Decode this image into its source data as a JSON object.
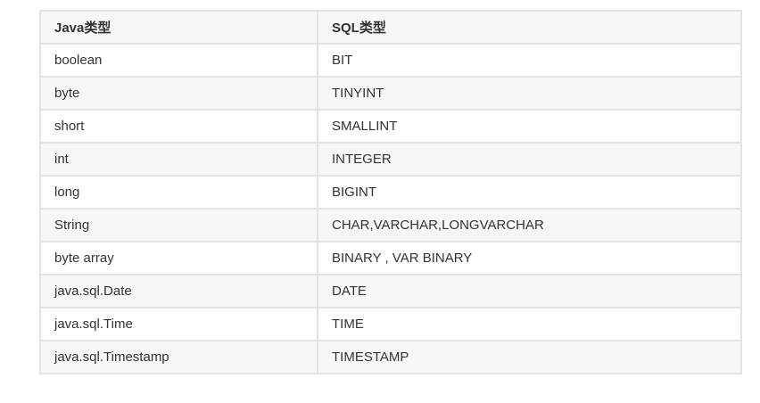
{
  "table": {
    "headers": [
      "Java类型",
      "SQL类型"
    ],
    "rows": [
      [
        "boolean",
        "BIT"
      ],
      [
        "byte",
        "TINYINT"
      ],
      [
        "short",
        "SMALLINT"
      ],
      [
        "int",
        "INTEGER"
      ],
      [
        "long",
        "BIGINT"
      ],
      [
        "String",
        "CHAR,VARCHAR,LONGVARCHAR"
      ],
      [
        "byte array",
        "BINARY , VAR BINARY"
      ],
      [
        "java.sql.Date",
        "DATE"
      ],
      [
        "java.sql.Time",
        "TIME"
      ],
      [
        "java.sql.Timestamp",
        "TIMESTAMP"
      ]
    ]
  }
}
